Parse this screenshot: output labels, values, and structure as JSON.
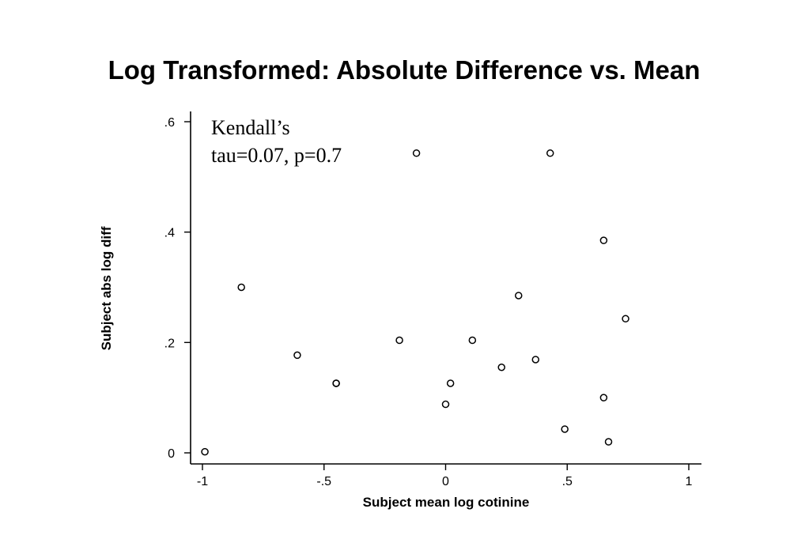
{
  "chart_data": {
    "type": "scatter",
    "title": "Log Transformed: Absolute Difference vs. Mean",
    "xlabel": "Subject mean log cotinine",
    "ylabel": "Subject abs log diff",
    "xlim": [
      -1,
      1
    ],
    "ylim": [
      0,
      0.6
    ],
    "xticks": [
      -1,
      -0.5,
      0,
      0.5,
      1
    ],
    "xtick_labels": [
      "-1",
      "-.5",
      "0",
      ".5",
      "1"
    ],
    "yticks": [
      0,
      0.2,
      0.4,
      0.6
    ],
    "ytick_labels": [
      "0",
      ".2",
      ".4",
      ".6"
    ],
    "grid": false,
    "annotation": {
      "line1": "Kendall’s",
      "line2": "tau=0.07, p=0.7"
    },
    "points": [
      {
        "x": -0.99,
        "y": 0.002
      },
      {
        "x": -0.84,
        "y": 0.3
      },
      {
        "x": -0.61,
        "y": 0.177
      },
      {
        "x": -0.45,
        "y": 0.126
      },
      {
        "x": -0.45,
        "y": 0.126
      },
      {
        "x": -0.19,
        "y": 0.204
      },
      {
        "x": -0.12,
        "y": 0.543
      },
      {
        "x": 0.0,
        "y": 0.088
      },
      {
        "x": 0.02,
        "y": 0.126
      },
      {
        "x": 0.11,
        "y": 0.204
      },
      {
        "x": 0.23,
        "y": 0.155
      },
      {
        "x": 0.3,
        "y": 0.285
      },
      {
        "x": 0.37,
        "y": 0.169
      },
      {
        "x": 0.43,
        "y": 0.543
      },
      {
        "x": 0.49,
        "y": 0.043
      },
      {
        "x": 0.65,
        "y": 0.385
      },
      {
        "x": 0.65,
        "y": 0.1
      },
      {
        "x": 0.67,
        "y": 0.02
      },
      {
        "x": 0.74,
        "y": 0.243
      }
    ]
  }
}
